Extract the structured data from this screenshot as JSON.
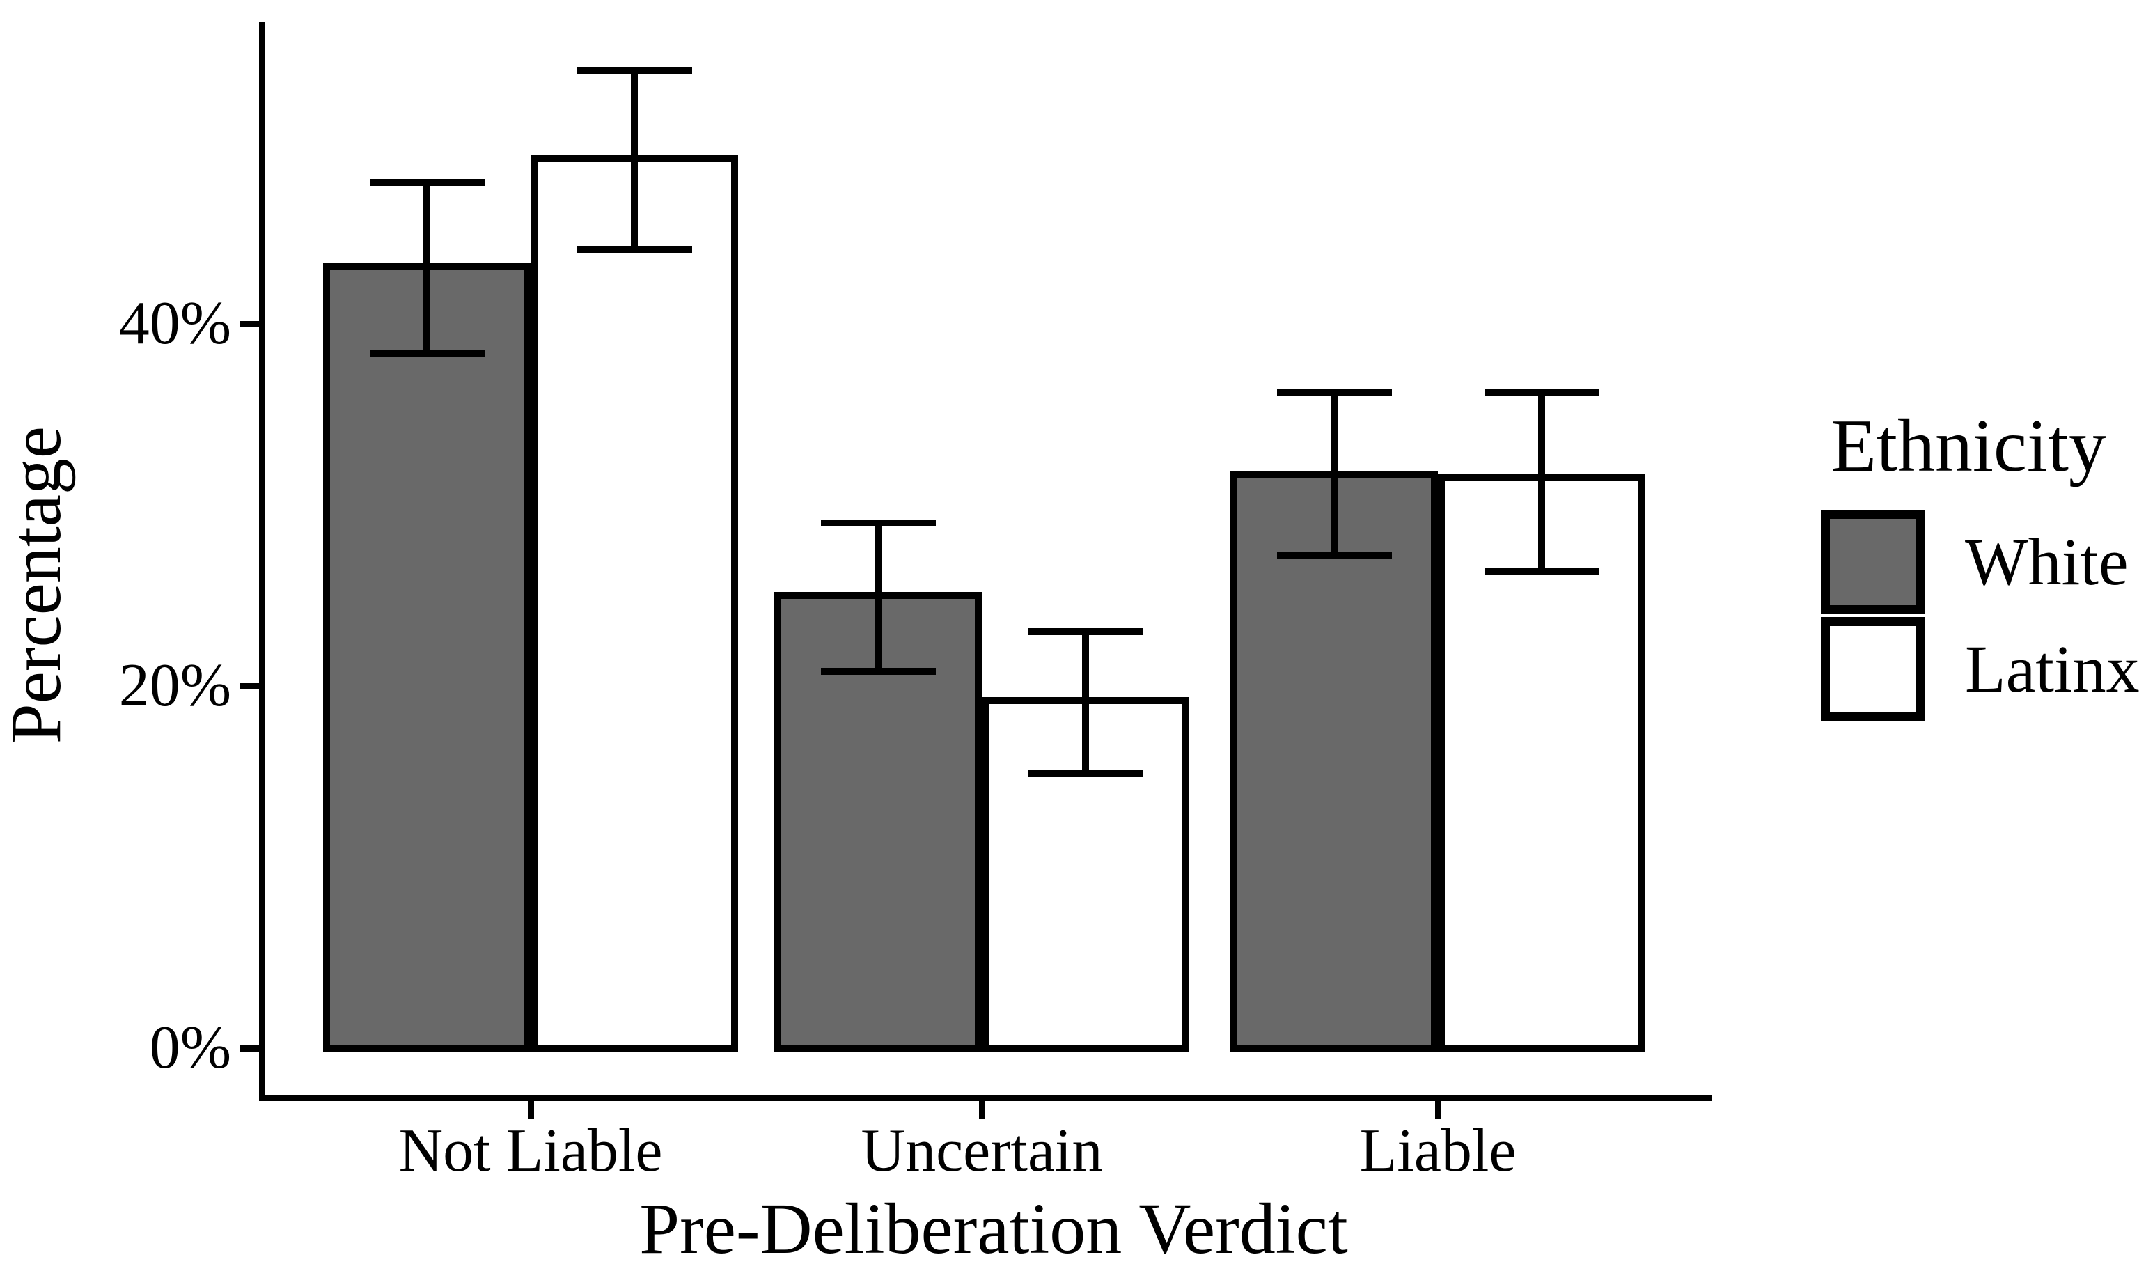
{
  "figure": {
    "background_color": "#ffffff",
    "axis_color": "#000000",
    "text_color": "#000000"
  },
  "chart_data": {
    "type": "bar",
    "title": "",
    "xlabel": "Pre-Deliberation Verdict",
    "ylabel": "Percentage",
    "categories": [
      "Not Liable",
      "Uncertain",
      "Liable"
    ],
    "series": [
      {
        "name": "White",
        "color": "#696969",
        "values": [
          43.2,
          25.0,
          31.7
        ],
        "error_low": [
          38.4,
          20.8,
          27.2
        ],
        "error_high": [
          47.8,
          29.0,
          36.2
        ]
      },
      {
        "name": "Latinx",
        "color": "#ffffff",
        "values": [
          49.1,
          19.2,
          31.5
        ],
        "error_low": [
          44.1,
          15.2,
          26.3
        ],
        "error_high": [
          54.0,
          23.0,
          36.2
        ]
      }
    ],
    "y_axis": {
      "ticks": [
        {
          "value": 0,
          "label": "0%"
        },
        {
          "value": 20,
          "label": "20%"
        },
        {
          "value": 40,
          "label": "40%"
        }
      ],
      "range": [
        0,
        57
      ],
      "grid": false
    },
    "legend": {
      "title": "Ethnicity",
      "position": "right"
    },
    "error_bars": true,
    "bar_outline_color": "#000000"
  }
}
